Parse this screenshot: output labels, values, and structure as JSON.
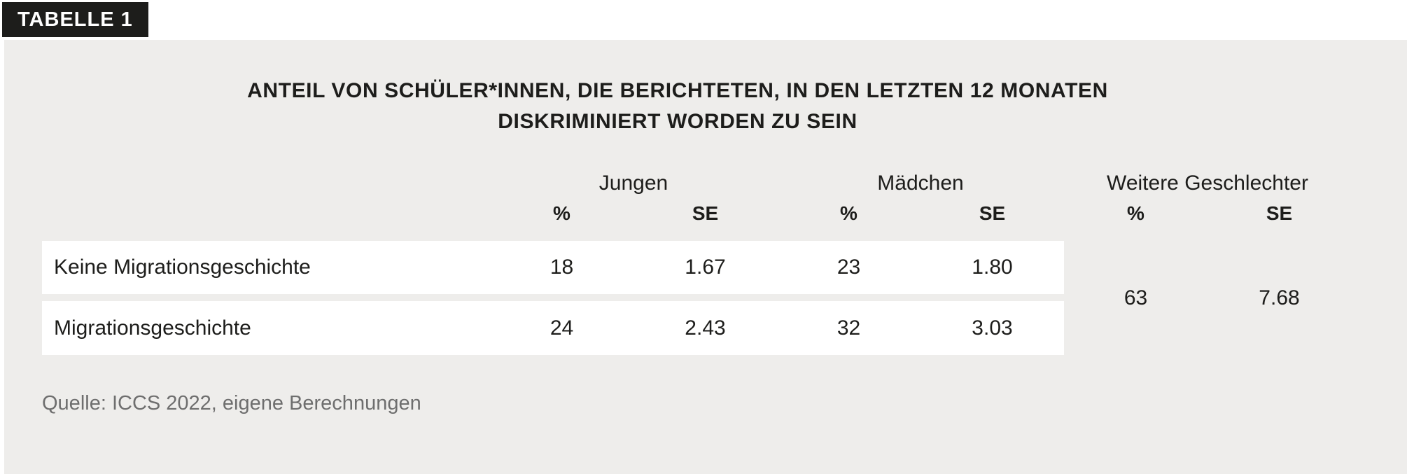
{
  "badge": {
    "label": "TABELLE 1"
  },
  "title": {
    "line1": "ANTEIL VON SCHÜLER*INNEN, DIE BERICHTETEN, IN DEN LETZTEN 12 MONATEN",
    "line2": "DISKRIMINIERT WORDEN ZU SEIN"
  },
  "table": {
    "groups": [
      {
        "label": "Jungen"
      },
      {
        "label": "Mädchen"
      },
      {
        "label": "Weitere Geschlechter"
      }
    ],
    "subheaders": [
      "%",
      "SE",
      "%",
      "SE",
      "%",
      "SE"
    ],
    "rows": [
      {
        "label": "Keine Migrationsgeschichte",
        "jungen_pct": "18",
        "jungen_se": "1.67",
        "maedchen_pct": "23",
        "maedchen_se": "1.80"
      },
      {
        "label": "Migrationsgeschichte",
        "jungen_pct": "24",
        "jungen_se": "2.43",
        "maedchen_pct": "32",
        "maedchen_se": "3.03"
      }
    ],
    "weitere_merged": {
      "pct": "63",
      "se": "7.68"
    }
  },
  "source": {
    "text": "Quelle: ICCS 2022, eigene Berechnungen"
  },
  "colors": {
    "panel_bg": "#eeedeb",
    "badge_bg": "#1d1d1b",
    "badge_text": "#ffffff",
    "row_bg": "#ffffff",
    "text": "#1d1d1b",
    "source_text": "#6e6e6e"
  },
  "chart_data": {
    "type": "table",
    "title": "ANTEIL VON SCHÜLER*INNEN, DIE BERICHTETEN, IN DEN LETZTEN 12 MONATEN DISKRIMINIERT WORDEN ZU SEIN",
    "column_groups": [
      "Jungen",
      "Mädchen",
      "Weitere Geschlechter"
    ],
    "columns": [
      "Jungen %",
      "Jungen SE",
      "Mädchen %",
      "Mädchen SE",
      "Weitere Geschlechter %",
      "Weitere Geschlechter SE"
    ],
    "rows": [
      {
        "label": "Keine Migrationsgeschichte",
        "values": [
          18,
          1.67,
          23,
          1.8,
          63,
          7.68
        ]
      },
      {
        "label": "Migrationsgeschichte",
        "values": [
          24,
          2.43,
          32,
          3.03,
          63,
          7.68
        ]
      }
    ],
    "notes": "Weitere Geschlechter values 63 and 7.68 are shown once as a merged cell spanning both rows",
    "source": "Quelle: ICCS 2022, eigene Berechnungen"
  }
}
